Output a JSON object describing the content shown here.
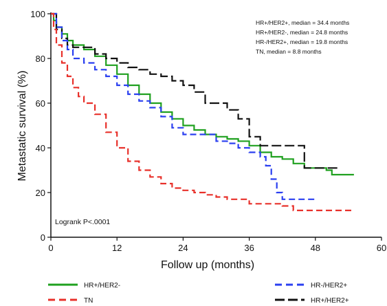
{
  "chart_data": {
    "type": "line",
    "step": true,
    "xlabel": "Follow up (months)",
    "ylabel": "Metastatic survival (%)",
    "xlim": [
      0,
      60
    ],
    "ylim": [
      0,
      100
    ],
    "x_ticks": [
      0,
      12,
      24,
      36,
      48,
      60
    ],
    "y_ticks": [
      0,
      20,
      40,
      60,
      80,
      100
    ],
    "x_tick_labels": [
      "0",
      "12",
      "24",
      "36",
      "48",
      "60"
    ],
    "y_tick_labels": [
      "0",
      "20",
      "40",
      "60",
      "80",
      "100"
    ],
    "grid": false,
    "annotations": [
      "HR+/HER2+, median = 34.4 months",
      "HR+/HER2-, median = 24.8 months",
      "HR-/HER2+, median = 19.8 months",
      "TN, median = 8.8 months"
    ],
    "test_label": "Logrank P<.0001",
    "legend_placement": "bottom",
    "series": [
      {
        "name": "HR+/HER2-",
        "color": "#1fa01f",
        "dash": "solid",
        "points": [
          [
            0,
            100
          ],
          [
            0.5,
            97
          ],
          [
            1,
            94
          ],
          [
            2,
            91
          ],
          [
            3,
            88
          ],
          [
            4,
            86
          ],
          [
            6,
            84
          ],
          [
            8,
            81
          ],
          [
            10,
            77
          ],
          [
            12,
            73
          ],
          [
            14,
            68
          ],
          [
            16,
            64
          ],
          [
            18,
            60
          ],
          [
            20,
            56
          ],
          [
            22,
            53
          ],
          [
            24,
            50
          ],
          [
            26,
            48
          ],
          [
            28,
            46
          ],
          [
            30,
            45
          ],
          [
            32,
            44
          ],
          [
            34,
            43
          ],
          [
            36,
            41
          ],
          [
            38,
            38
          ],
          [
            40,
            36
          ],
          [
            42,
            35
          ],
          [
            44,
            33
          ],
          [
            46,
            31
          ],
          [
            48,
            31
          ],
          [
            50,
            30
          ],
          [
            51,
            28
          ],
          [
            55,
            28
          ]
        ]
      },
      {
        "name": "HR+/HER2+",
        "color": "#111111",
        "dash": "dash",
        "points": [
          [
            0,
            100
          ],
          [
            1,
            93
          ],
          [
            2,
            89
          ],
          [
            3,
            86
          ],
          [
            4,
            85
          ],
          [
            8,
            82
          ],
          [
            10,
            80
          ],
          [
            12,
            78
          ],
          [
            14,
            76
          ],
          [
            16,
            75
          ],
          [
            18,
            73
          ],
          [
            20,
            72
          ],
          [
            22,
            70
          ],
          [
            24,
            68
          ],
          [
            26,
            65
          ],
          [
            28,
            60
          ],
          [
            32,
            57
          ],
          [
            34,
            53
          ],
          [
            36,
            45
          ],
          [
            38,
            41
          ],
          [
            41,
            41
          ],
          [
            45,
            41
          ],
          [
            46,
            31
          ],
          [
            52,
            31
          ]
        ]
      },
      {
        "name": "HR-/HER2+",
        "color": "#2a3ff0",
        "dash": "dash",
        "points": [
          [
            0,
            100
          ],
          [
            1,
            94
          ],
          [
            2,
            88
          ],
          [
            3,
            84
          ],
          [
            4,
            80
          ],
          [
            6,
            78
          ],
          [
            8,
            75
          ],
          [
            10,
            72
          ],
          [
            12,
            68
          ],
          [
            14,
            64
          ],
          [
            16,
            61
          ],
          [
            18,
            58
          ],
          [
            20,
            54
          ],
          [
            22,
            49
          ],
          [
            24,
            46
          ],
          [
            26,
            46
          ],
          [
            28,
            46
          ],
          [
            30,
            43
          ],
          [
            32,
            42
          ],
          [
            34,
            40
          ],
          [
            36,
            38
          ],
          [
            38,
            36
          ],
          [
            39,
            32
          ],
          [
            40,
            26
          ],
          [
            41,
            20
          ],
          [
            42,
            17
          ],
          [
            48,
            17
          ]
        ]
      },
      {
        "name": "TN",
        "color": "#e8302a",
        "dash": "dash",
        "points": [
          [
            0,
            100
          ],
          [
            0.5,
            93
          ],
          [
            1,
            86
          ],
          [
            2,
            78
          ],
          [
            3,
            72
          ],
          [
            4,
            67
          ],
          [
            5,
            63
          ],
          [
            6,
            60
          ],
          [
            8,
            55
          ],
          [
            10,
            47
          ],
          [
            12,
            40
          ],
          [
            14,
            34
          ],
          [
            16,
            30
          ],
          [
            18,
            27
          ],
          [
            20,
            24
          ],
          [
            22,
            22
          ],
          [
            24,
            21
          ],
          [
            26,
            20
          ],
          [
            28,
            19
          ],
          [
            30,
            18
          ],
          [
            32,
            17
          ],
          [
            36,
            15
          ],
          [
            40,
            15
          ],
          [
            42,
            14
          ],
          [
            44,
            12
          ],
          [
            48,
            12
          ],
          [
            55,
            12
          ]
        ]
      }
    ],
    "legend": [
      {
        "label": "HR+/HER2-",
        "series": "HR+/HER2-"
      },
      {
        "label": "TN",
        "series": "TN"
      },
      {
        "label": "HR-/HER2+",
        "series": "HR-/HER2+"
      },
      {
        "label": "HR+/HER2+",
        "series": "HR+/HER2+"
      }
    ]
  }
}
